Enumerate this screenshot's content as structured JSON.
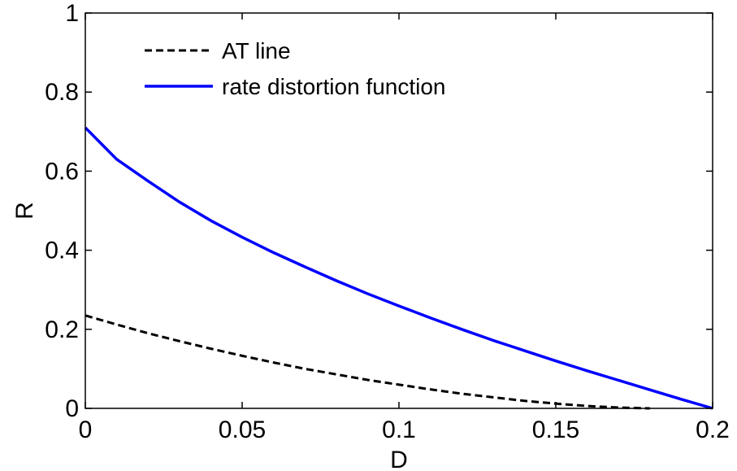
{
  "chart_data": {
    "type": "line",
    "title": "",
    "xlabel": "D",
    "ylabel": "R",
    "xlim": [
      0,
      0.2
    ],
    "ylim": [
      0,
      1
    ],
    "xticks": [
      0,
      0.05,
      0.1,
      0.15,
      0.2
    ],
    "xtick_labels": [
      "0",
      "0.05",
      "0.1",
      "0.15",
      "0.2"
    ],
    "yticks": [
      0,
      0.2,
      0.4,
      0.6,
      0.8,
      1
    ],
    "ytick_labels": [
      "0",
      "0.2",
      "0.4",
      "0.6",
      "0.8",
      "1"
    ],
    "grid": false,
    "legend_position": "top-left",
    "series": [
      {
        "name": "AT line",
        "color": "#000000",
        "style": "dashed",
        "x": [
          0.0,
          0.01,
          0.02,
          0.03,
          0.04,
          0.05,
          0.06,
          0.07,
          0.08,
          0.09,
          0.1,
          0.11,
          0.12,
          0.13,
          0.14,
          0.15,
          0.16,
          0.17,
          0.18
        ],
        "y": [
          0.235,
          0.212,
          0.19,
          0.17,
          0.151,
          0.133,
          0.116,
          0.1,
          0.086,
          0.072,
          0.06,
          0.048,
          0.037,
          0.028,
          0.019,
          0.012,
          0.006,
          0.002,
          0.0
        ]
      },
      {
        "name": "rate distortion function",
        "color": "#0000ff",
        "style": "solid",
        "x": [
          0.0,
          0.01,
          0.02,
          0.03,
          0.04,
          0.05,
          0.06,
          0.07,
          0.08,
          0.09,
          0.1,
          0.11,
          0.12,
          0.13,
          0.14,
          0.15,
          0.16,
          0.17,
          0.18,
          0.19,
          0.2
        ],
        "y": [
          0.71,
          0.63,
          0.575,
          0.522,
          0.475,
          0.433,
          0.394,
          0.358,
          0.323,
          0.29,
          0.259,
          0.229,
          0.2,
          0.172,
          0.146,
          0.12,
          0.095,
          0.071,
          0.047,
          0.023,
          0.0
        ]
      }
    ]
  }
}
